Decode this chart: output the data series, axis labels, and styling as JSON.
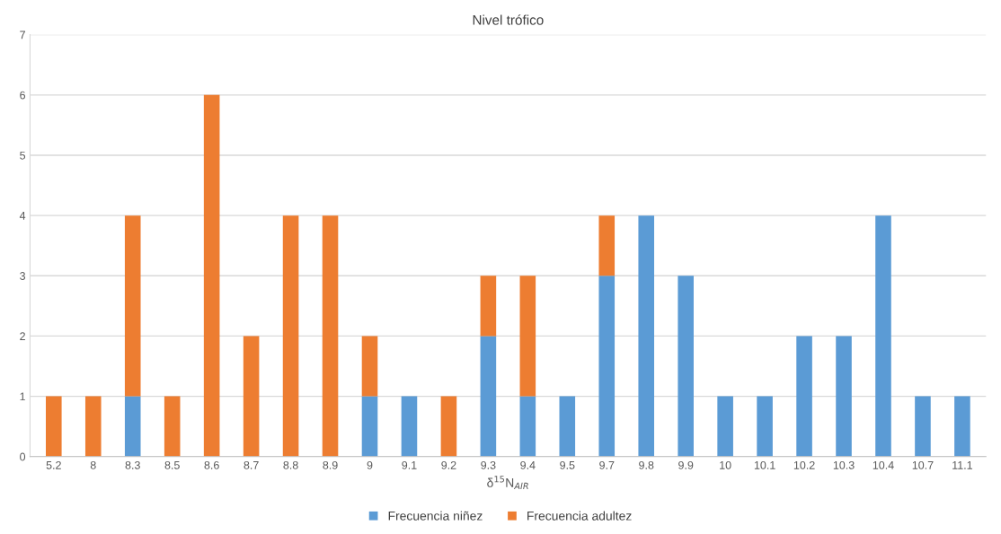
{
  "chart_data": {
    "type": "bar",
    "title": "Nivel trófico",
    "xlabel": "δ$^{15}$N$_{AIR}$",
    "stacked": true,
    "categories": [
      "5.2",
      "8",
      "8.3",
      "8.5",
      "8.6",
      "8.7",
      "8.8",
      "8.9",
      "9",
      "9.1",
      "9.2",
      "9.3",
      "9.4",
      "9.5",
      "9.7",
      "9.8",
      "9.9",
      "10",
      "10.1",
      "10.2",
      "10.3",
      "10.4",
      "10.7",
      "11.1"
    ],
    "series": [
      {
        "name": "Frecuencia niñez",
        "color": "#5b9bd5",
        "values": [
          0,
          0,
          1,
          0,
          0,
          0,
          0,
          0,
          1,
          1,
          0,
          2,
          1,
          1,
          3,
          4,
          3,
          1,
          1,
          2,
          2,
          4,
          1,
          1
        ]
      },
      {
        "name": "Frecuencia adultez",
        "color": "#ed7d31",
        "values": [
          1,
          1,
          3,
          1,
          6,
          2,
          4,
          4,
          1,
          0,
          1,
          1,
          2,
          0,
          1,
          0,
          0,
          0,
          0,
          0,
          0,
          0,
          0,
          0
        ]
      }
    ],
    "ylim": [
      0,
      7
    ],
    "yticks": [
      0,
      1,
      2,
      3,
      4,
      5,
      6,
      7
    ],
    "grid": "y",
    "legend": "bottom"
  }
}
